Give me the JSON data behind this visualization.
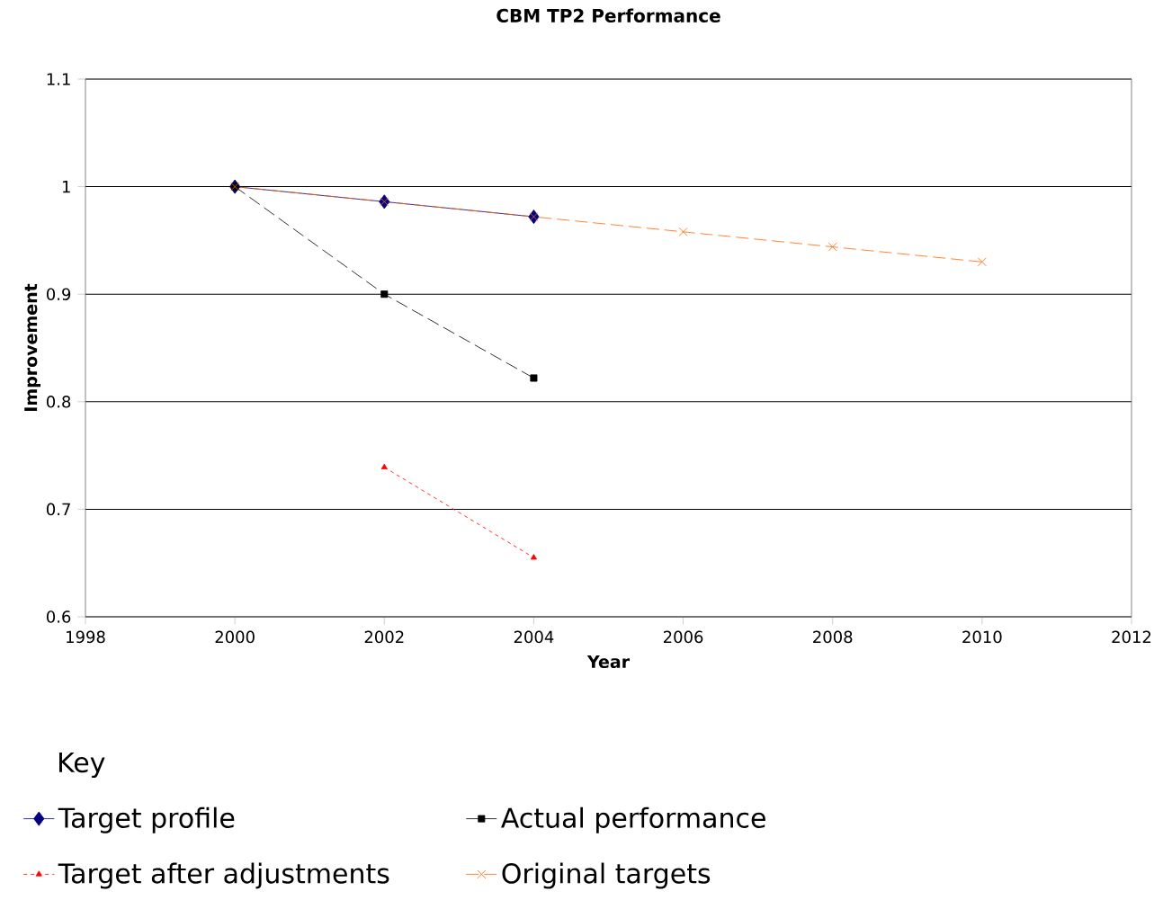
{
  "chart_data": {
    "type": "line",
    "title": "CBM TP2 Performance",
    "xlabel": "Year",
    "ylabel": "Improvement",
    "legend_title": "Key",
    "xlim": [
      1998,
      2012
    ],
    "xticks": [
      1998,
      2000,
      2002,
      2004,
      2006,
      2008,
      2010,
      2012
    ],
    "ylim": [
      0.6,
      1.1
    ],
    "yticks": [
      0.6,
      0.7,
      0.8,
      0.9,
      1,
      1.1
    ],
    "grid": "y",
    "legend": "bottom",
    "series": [
      {
        "name": "Original targets",
        "color": "#ff6600",
        "marker": "cross",
        "line_style": "dashed",
        "x": [
          2000,
          2002,
          2004,
          2006,
          2008,
          2010
        ],
        "values": [
          1,
          0.986,
          0.972,
          0.958,
          0.944,
          0.93
        ]
      },
      {
        "name": "Target profile",
        "color": "#000080",
        "marker": "diamond",
        "line_style": "solid",
        "x": [
          2000,
          2002,
          2004
        ],
        "values": [
          1,
          0.986,
          0.972
        ]
      },
      {
        "name": "Actual performance",
        "color": "#000000",
        "marker": "square",
        "line_style": "dashed",
        "x": [
          2000,
          2002,
          2004
        ],
        "values": [
          1,
          0.9,
          0.822
        ]
      },
      {
        "name": "Target after adjustments",
        "color": "#ff0000",
        "marker": "triangle",
        "line_style": "dotted",
        "x": [
          2002,
          2004
        ],
        "values": [
          0.739,
          0.655
        ]
      }
    ]
  }
}
